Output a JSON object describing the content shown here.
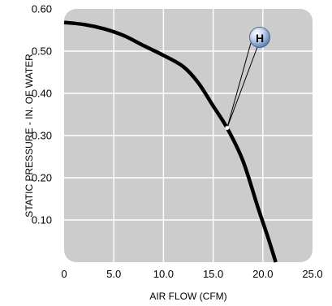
{
  "chart_data": {
    "type": "line",
    "xlabel": "AIR FLOW (CFM)",
    "ylabel": "STATIC PRESSURE - IN. OF WATER",
    "xlim": [
      0,
      25
    ],
    "ylim": [
      0,
      0.6
    ],
    "x_ticks": [
      "0",
      "5.0",
      "10.0",
      "15.0",
      "20.0",
      "25.0"
    ],
    "y_ticks": [
      "0.10",
      "0.20",
      "0.30",
      "0.40",
      "0.50",
      "0.60"
    ],
    "grid": true,
    "series": [
      {
        "x": [
          0,
          2,
          4,
          6,
          8,
          10,
          12,
          13.5,
          15,
          16.4,
          18,
          19.5,
          20.5,
          21.3
        ],
        "y": [
          0.568,
          0.563,
          0.553,
          0.537,
          0.513,
          0.49,
          0.463,
          0.425,
          0.37,
          0.318,
          0.24,
          0.13,
          0.06,
          0.0
        ],
        "color": "#000000"
      }
    ],
    "annotations": [
      {
        "label": "H",
        "x": 16.4,
        "y": 0.318
      }
    ]
  }
}
